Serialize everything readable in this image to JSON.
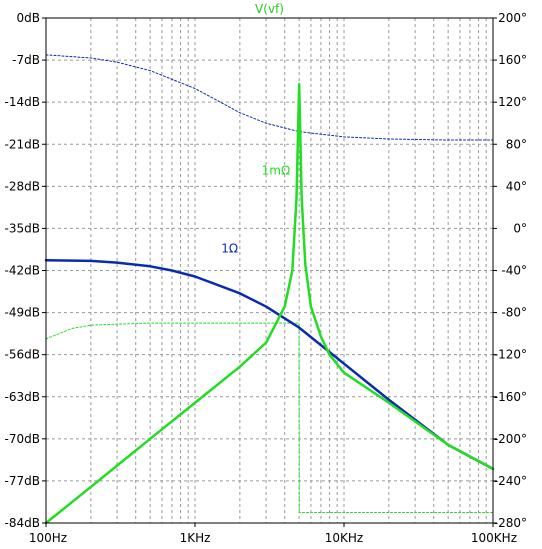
{
  "chart_data": {
    "type": "line",
    "title": "V(vf)",
    "title_color": "#22cc22",
    "x_scale": "log",
    "xlim": [
      100,
      100000
    ],
    "x_tick_labels": [
      "100Hz",
      "1KHz",
      "10KHz",
      "100KHz"
    ],
    "x_tick_values": [
      100,
      1000,
      10000,
      100000
    ],
    "ylim_left": [
      -84,
      0
    ],
    "y_left_unit": "dB",
    "y_left_tick_values": [
      0,
      -7,
      -14,
      -21,
      -28,
      -35,
      -42,
      -49,
      -56,
      -63,
      -70,
      -77,
      -84
    ],
    "y_left_tick_labels": [
      "0dB",
      "-7dB",
      "-14dB",
      "-21dB",
      "-28dB",
      "-35dB",
      "-42dB",
      "-49dB",
      "-56dB",
      "-63dB",
      "-70dB",
      "-77dB",
      "-84dB"
    ],
    "ylim_right": [
      -280,
      200
    ],
    "y_right_unit": "°",
    "y_right_tick_values": [
      200,
      160,
      120,
      80,
      40,
      0,
      -40,
      -80,
      -120,
      -160,
      -200,
      -240,
      -280
    ],
    "y_right_tick_labels": [
      "200°",
      "160°",
      "120°",
      "80°",
      "40°",
      "0°",
      "-40°",
      "-80°",
      "-120°",
      "-160°",
      "-200°",
      "-240°",
      "-280°"
    ],
    "grid": true,
    "series": [
      {
        "name": "1mΩ",
        "color": "#22dd22",
        "style": "solid",
        "axis": "left",
        "quantity": "magnitude",
        "x": [
          100,
          200,
          500,
          1000,
          2000,
          3000,
          4000,
          4500,
          4800,
          5000,
          5200,
          5500,
          6000,
          7000,
          8000,
          10000,
          20000,
          50000,
          100000
        ],
        "y": [
          -84,
          -78,
          -70,
          -64,
          -58,
          -54,
          -48,
          -42,
          -30,
          -11,
          -30,
          -41,
          -48,
          -53,
          -56,
          -59,
          -64,
          -71,
          -75
        ]
      },
      {
        "name": "1Ω",
        "color": "#0a2ab0",
        "style": "solid",
        "axis": "left",
        "quantity": "magnitude",
        "x": [
          100,
          200,
          300,
          500,
          700,
          1000,
          2000,
          3000,
          5000,
          10000,
          20000,
          50000,
          100000
        ],
        "y": [
          -40.3,
          -40.4,
          -40.7,
          -41.3,
          -42,
          -43,
          -45.8,
          -48,
          -51.5,
          -57.5,
          -63.5,
          -71,
          -75
        ]
      },
      {
        "name": "1mΩ",
        "color": "#22dd22",
        "style": "dotted",
        "axis": "right",
        "quantity": "phase",
        "x": [
          100,
          150,
          200,
          300,
          500,
          1000,
          2000,
          3000,
          4500,
          4990,
          5010,
          10000,
          50000,
          100000
        ],
        "y": [
          -105,
          -95,
          -92,
          -91,
          -90,
          -90,
          -90,
          -90,
          -90,
          -90,
          -270,
          -270,
          -270,
          -270
        ]
      },
      {
        "name": "1Ω",
        "color": "#0a2ab0",
        "style": "dotted",
        "axis": "right",
        "quantity": "phase",
        "x": [
          100,
          200,
          300,
          500,
          1000,
          2000,
          3000,
          5000,
          10000,
          20000,
          50000,
          100000
        ],
        "y": [
          165,
          162,
          158,
          150,
          133,
          110,
          100,
          92,
          87,
          85,
          84,
          84
        ]
      }
    ],
    "annotations": [
      {
        "text": "1mΩ",
        "color": "#22dd22",
        "x": 2800,
        "y": -26
      },
      {
        "text": "1Ω",
        "color": "#0a2ab0",
        "x": 1500,
        "y": -39
      }
    ]
  }
}
